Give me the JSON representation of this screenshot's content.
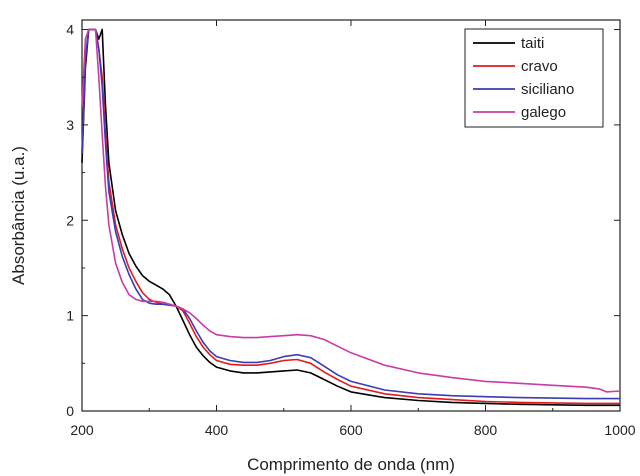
{
  "chart_data": {
    "type": "line",
    "title": "",
    "xlabel": "Comprimento de onda (nm)",
    "ylabel": "Absorbância (u.a.)",
    "xlim": [
      200,
      1000
    ],
    "ylim": [
      0,
      4.1
    ],
    "xticks": [
      200,
      400,
      600,
      800,
      1000
    ],
    "yticks": [
      0,
      1,
      2,
      3,
      4
    ],
    "grid": false,
    "legend_position": "top-right",
    "series": [
      {
        "name": "taiti",
        "color": "#000000",
        "x": [
          200,
          205,
          210,
          215,
          220,
          225,
          230,
          235,
          240,
          250,
          260,
          270,
          280,
          290,
          300,
          310,
          320,
          330,
          340,
          350,
          360,
          370,
          380,
          390,
          400,
          420,
          440,
          460,
          480,
          500,
          520,
          540,
          560,
          580,
          600,
          650,
          700,
          750,
          800,
          850,
          900,
          950,
          1000
        ],
        "values": [
          2.6,
          3.6,
          4.0,
          4.0,
          4.0,
          3.9,
          4.0,
          3.2,
          2.6,
          2.1,
          1.85,
          1.65,
          1.52,
          1.42,
          1.36,
          1.32,
          1.28,
          1.22,
          1.1,
          0.95,
          0.8,
          0.67,
          0.58,
          0.51,
          0.46,
          0.42,
          0.4,
          0.4,
          0.41,
          0.42,
          0.43,
          0.4,
          0.33,
          0.26,
          0.2,
          0.14,
          0.11,
          0.09,
          0.08,
          0.07,
          0.065,
          0.06,
          0.06
        ]
      },
      {
        "name": "cravo",
        "color": "#e41a1c",
        "x": [
          200,
          205,
          210,
          215,
          220,
          225,
          230,
          235,
          240,
          250,
          260,
          270,
          280,
          290,
          300,
          310,
          320,
          330,
          340,
          350,
          360,
          370,
          380,
          390,
          400,
          420,
          440,
          460,
          480,
          500,
          520,
          540,
          560,
          580,
          600,
          650,
          700,
          750,
          800,
          850,
          900,
          950,
          1000
        ],
        "values": [
          2.7,
          3.7,
          4.0,
          4.0,
          4.0,
          3.8,
          3.5,
          2.9,
          2.4,
          1.95,
          1.7,
          1.5,
          1.36,
          1.24,
          1.17,
          1.14,
          1.12,
          1.11,
          1.1,
          1.05,
          0.92,
          0.78,
          0.67,
          0.59,
          0.53,
          0.49,
          0.48,
          0.48,
          0.5,
          0.53,
          0.54,
          0.5,
          0.41,
          0.33,
          0.26,
          0.18,
          0.14,
          0.12,
          0.1,
          0.09,
          0.085,
          0.08,
          0.08
        ]
      },
      {
        "name": "siciliano",
        "color": "#3a3db4",
        "x": [
          200,
          205,
          210,
          215,
          220,
          225,
          230,
          235,
          240,
          250,
          260,
          270,
          280,
          290,
          300,
          310,
          320,
          330,
          340,
          350,
          360,
          370,
          380,
          390,
          400,
          420,
          440,
          460,
          480,
          500,
          520,
          540,
          560,
          580,
          600,
          650,
          700,
          750,
          800,
          850,
          900,
          950,
          1000
        ],
        "values": [
          2.7,
          3.7,
          4.0,
          4.0,
          4.0,
          3.8,
          3.4,
          2.8,
          2.3,
          1.88,
          1.62,
          1.43,
          1.28,
          1.17,
          1.13,
          1.12,
          1.12,
          1.11,
          1.1,
          1.07,
          0.97,
          0.84,
          0.72,
          0.63,
          0.57,
          0.53,
          0.51,
          0.51,
          0.53,
          0.57,
          0.59,
          0.56,
          0.47,
          0.38,
          0.31,
          0.22,
          0.18,
          0.16,
          0.15,
          0.14,
          0.135,
          0.13,
          0.13
        ]
      },
      {
        "name": "galego",
        "color": "#c83ca8",
        "x": [
          200,
          205,
          210,
          215,
          220,
          225,
          230,
          235,
          240,
          250,
          260,
          270,
          280,
          290,
          300,
          310,
          320,
          330,
          340,
          350,
          360,
          370,
          380,
          390,
          400,
          420,
          440,
          460,
          480,
          500,
          520,
          540,
          560,
          580,
          600,
          650,
          700,
          750,
          800,
          850,
          900,
          950,
          970,
          980,
          1000
        ],
        "values": [
          3.2,
          3.9,
          4.0,
          4.0,
          4.0,
          3.5,
          2.9,
          2.35,
          1.95,
          1.55,
          1.35,
          1.22,
          1.17,
          1.15,
          1.15,
          1.15,
          1.14,
          1.12,
          1.1,
          1.07,
          1.03,
          0.97,
          0.9,
          0.84,
          0.8,
          0.78,
          0.77,
          0.77,
          0.78,
          0.79,
          0.8,
          0.79,
          0.75,
          0.68,
          0.61,
          0.48,
          0.4,
          0.35,
          0.31,
          0.29,
          0.27,
          0.25,
          0.23,
          0.2,
          0.21
        ]
      }
    ]
  }
}
